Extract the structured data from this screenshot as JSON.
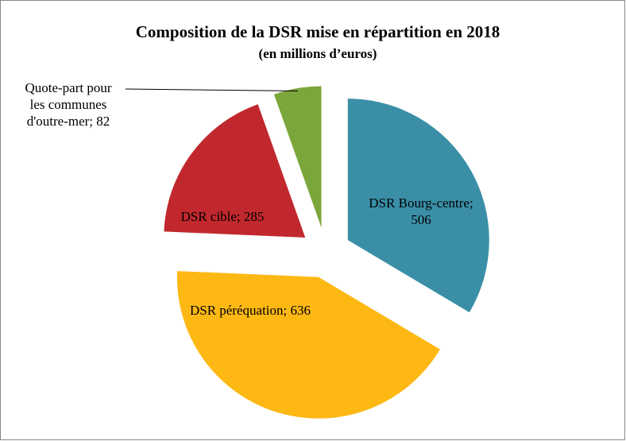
{
  "chart_data": {
    "type": "pie",
    "title": "Composition de la DSR mise en répartition en 2018",
    "subtitle": "(en millions d’euros)",
    "values": [
      506,
      636,
      285,
      82
    ],
    "value_labels": [
      "DSR Bourg-centre; 506",
      "DSR péréquation; 636",
      "DSR cible; 285",
      "Quote-part pour les communes d'outre-mer; 82"
    ],
    "colors": [
      "#3a8fa7",
      "#fdb813",
      "#c1282d",
      "#7ba63b"
    ]
  }
}
